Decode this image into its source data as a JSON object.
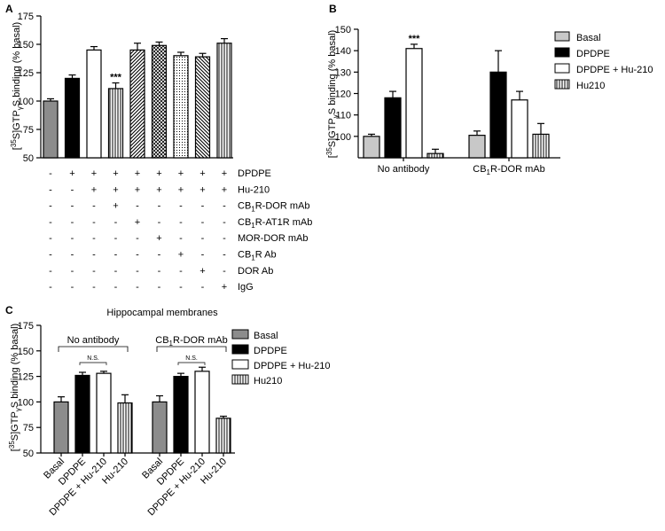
{
  "colors": {
    "basal": "#8c8c8c",
    "basal_light": "#c8c8c8",
    "dpdpe": "#000000",
    "dpdpe_hu210": "#ffffff",
    "hu210_hatch": "#000000"
  },
  "chart_data": [
    {
      "panel": "A",
      "type": "bar",
      "ylabel": "[35S]GTPγS binding (% basal)",
      "ylim": [
        50,
        175
      ],
      "yticks": [
        50,
        75,
        100,
        125,
        150,
        175
      ],
      "values": [
        100,
        120,
        145,
        111,
        145,
        149,
        140,
        139,
        151
      ],
      "errors": [
        2,
        3,
        3,
        5,
        6,
        3,
        3,
        3,
        4
      ],
      "fills": [
        "gray",
        "black",
        "white",
        "vlines",
        "diag",
        "grid",
        "dots",
        "diag2",
        "vlines"
      ],
      "annotations": [
        {
          "bar": 3,
          "text": "***"
        }
      ],
      "treatment_rows": [
        {
          "label": "DPDPE",
          "signs": [
            "-",
            "+",
            "+",
            "+",
            "+",
            "+",
            "+",
            "+",
            "+"
          ]
        },
        {
          "label": "Hu-210",
          "signs": [
            "-",
            "-",
            "+",
            "+",
            "+",
            "+",
            "+",
            "+",
            "+"
          ]
        },
        {
          "label": "CB1R-DOR mAb",
          "signs": [
            "-",
            "-",
            "-",
            "+",
            "-",
            "-",
            "-",
            "-",
            "-"
          ]
        },
        {
          "label": "CB1R-AT1R mAb",
          "signs": [
            "-",
            "-",
            "-",
            "-",
            "+",
            "-",
            "-",
            "-",
            "-"
          ]
        },
        {
          "label": "MOR-DOR mAb",
          "signs": [
            "-",
            "-",
            "-",
            "-",
            "-",
            "+",
            "-",
            "-",
            "-"
          ]
        },
        {
          "label": "CB1R Ab",
          "signs": [
            "-",
            "-",
            "-",
            "-",
            "-",
            "-",
            "+",
            "-",
            "-"
          ]
        },
        {
          "label": "DOR Ab",
          "signs": [
            "-",
            "-",
            "-",
            "-",
            "-",
            "-",
            "-",
            "+",
            "-"
          ]
        },
        {
          "label": "IgG",
          "signs": [
            "-",
            "-",
            "-",
            "-",
            "-",
            "-",
            "-",
            "-",
            "+"
          ]
        }
      ]
    },
    {
      "panel": "B",
      "type": "bar",
      "ylabel": "[35S]GTPγS binding (% basal)",
      "ylim": [
        90,
        150
      ],
      "yticks": [
        100,
        110,
        120,
        130,
        140,
        150
      ],
      "categories": [
        "No antibody",
        "CB1R-DOR mAb"
      ],
      "series": [
        {
          "name": "Basal",
          "values": [
            100,
            100.5
          ],
          "errors": [
            1,
            2
          ]
        },
        {
          "name": "DPDPE",
          "values": [
            118,
            130
          ],
          "errors": [
            3,
            10
          ]
        },
        {
          "name": "DPDPE + Hu-210",
          "values": [
            141,
            117
          ],
          "errors": [
            2,
            4
          ]
        },
        {
          "name": "Hu210",
          "values": [
            92,
            101
          ],
          "errors": [
            2,
            5
          ]
        }
      ],
      "annotations": [
        {
          "group": 0,
          "series": 2,
          "text": "***"
        }
      ]
    },
    {
      "panel": "C",
      "type": "bar",
      "title": "Hippocampal membranes",
      "ylabel": "[35S]GTPγS binding (% basal)",
      "ylim": [
        50,
        175
      ],
      "yticks": [
        50,
        75,
        100,
        125,
        150,
        175
      ],
      "group_labels": [
        "No antibody",
        "CB1R-DOR mAb"
      ],
      "tick_labels": [
        "Basal",
        "DPDPE",
        "DPDPE + Hu-210",
        "Hu-210",
        "Basal",
        "DPDPE",
        "DPDPE + Hu-210",
        "Hu-210"
      ],
      "series": [
        {
          "name": "Basal",
          "values": [
            100,
            100
          ],
          "errors": [
            5,
            6
          ]
        },
        {
          "name": "DPDPE",
          "values": [
            126,
            125
          ],
          "errors": [
            3,
            3
          ]
        },
        {
          "name": "DPDPE + Hu-210",
          "values": [
            128,
            130
          ],
          "errors": [
            2,
            4
          ]
        },
        {
          "name": "Hu210",
          "values": [
            99,
            84
          ],
          "errors": [
            8,
            2
          ]
        }
      ],
      "annotations": [
        {
          "group": 0,
          "text": "N.S."
        },
        {
          "group": 1,
          "text": "N.S."
        }
      ]
    }
  ]
}
